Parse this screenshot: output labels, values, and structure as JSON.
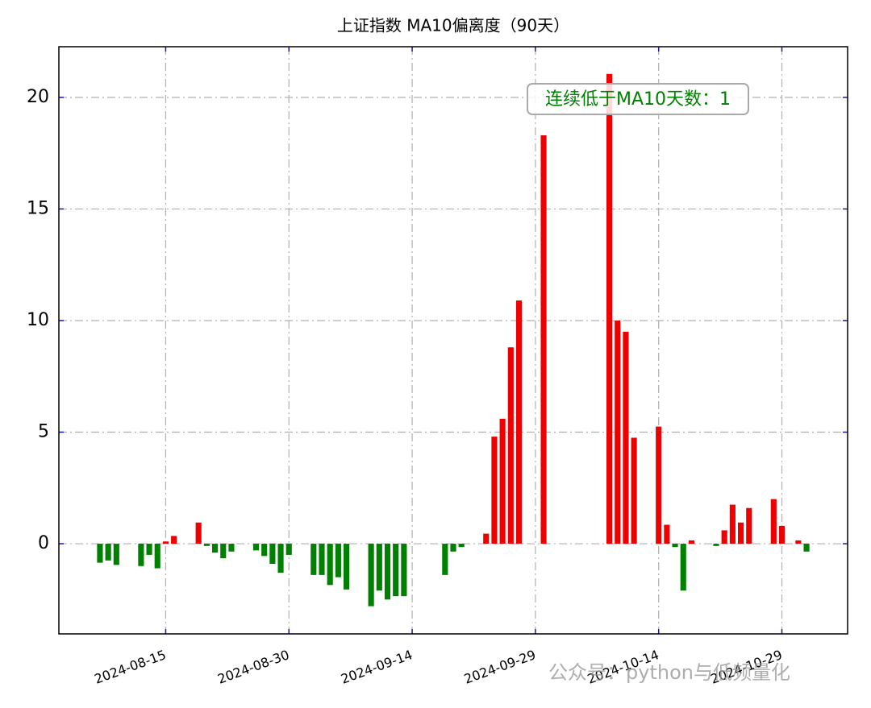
{
  "chart_data": {
    "type": "bar",
    "title": "上证指数 MA10偏离度（90天）",
    "annotation": "连续低于MA10天数：1",
    "watermark": "公众号：python与低频量化",
    "x": [
      "2024-08-07",
      "2024-08-08",
      "2024-08-09",
      "2024-08-12",
      "2024-08-13",
      "2024-08-14",
      "2024-08-15",
      "2024-08-16",
      "2024-08-19",
      "2024-08-20",
      "2024-08-21",
      "2024-08-22",
      "2024-08-23",
      "2024-08-26",
      "2024-08-27",
      "2024-08-28",
      "2024-08-29",
      "2024-08-30",
      "2024-09-02",
      "2024-09-03",
      "2024-09-04",
      "2024-09-05",
      "2024-09-06",
      "2024-09-09",
      "2024-09-10",
      "2024-09-11",
      "2024-09-12",
      "2024-09-13",
      "2024-09-18",
      "2024-09-19",
      "2024-09-20",
      "2024-09-23",
      "2024-09-24",
      "2024-09-25",
      "2024-09-26",
      "2024-09-27",
      "2024-09-30",
      "2024-10-08",
      "2024-10-09",
      "2024-10-10",
      "2024-10-11",
      "2024-10-14",
      "2024-10-15",
      "2024-10-16",
      "2024-10-17",
      "2024-10-18",
      "2024-10-21",
      "2024-10-22",
      "2024-10-23",
      "2024-10-24",
      "2024-10-25",
      "2024-10-28",
      "2024-10-29",
      "2024-10-31",
      "2024-11-01"
    ],
    "values": [
      -0.85,
      -0.75,
      -0.95,
      -1.0,
      -0.5,
      -1.1,
      0.1,
      0.35,
      0.95,
      -0.1,
      -0.4,
      -0.65,
      -0.35,
      -0.3,
      -0.55,
      -0.9,
      -1.3,
      -0.5,
      -1.4,
      -1.4,
      -1.85,
      -1.5,
      -2.05,
      -2.8,
      -2.1,
      -2.5,
      -2.35,
      -2.35,
      -1.4,
      -0.35,
      -0.15,
      0.45,
      4.8,
      5.6,
      8.8,
      10.9,
      18.3,
      21.05,
      10.0,
      9.5,
      4.75,
      5.25,
      0.85,
      -0.15,
      -2.1,
      0.15,
      -0.1,
      0.6,
      1.75,
      0.95,
      1.6,
      2.0,
      0.8,
      0.15,
      -0.35
    ],
    "colors": {
      "positive": "#ee0000",
      "negative": "#008000"
    },
    "xlim": [
      "2024-08-02",
      "2024-11-06"
    ],
    "xticks": [
      "2024-08-15",
      "2024-08-30",
      "2024-09-14",
      "2024-09-29",
      "2024-10-14",
      "2024-10-29"
    ],
    "ylim": [
      -4.04,
      22.27
    ],
    "yticks": [
      0,
      5,
      10,
      15,
      20
    ],
    "grid": true
  }
}
